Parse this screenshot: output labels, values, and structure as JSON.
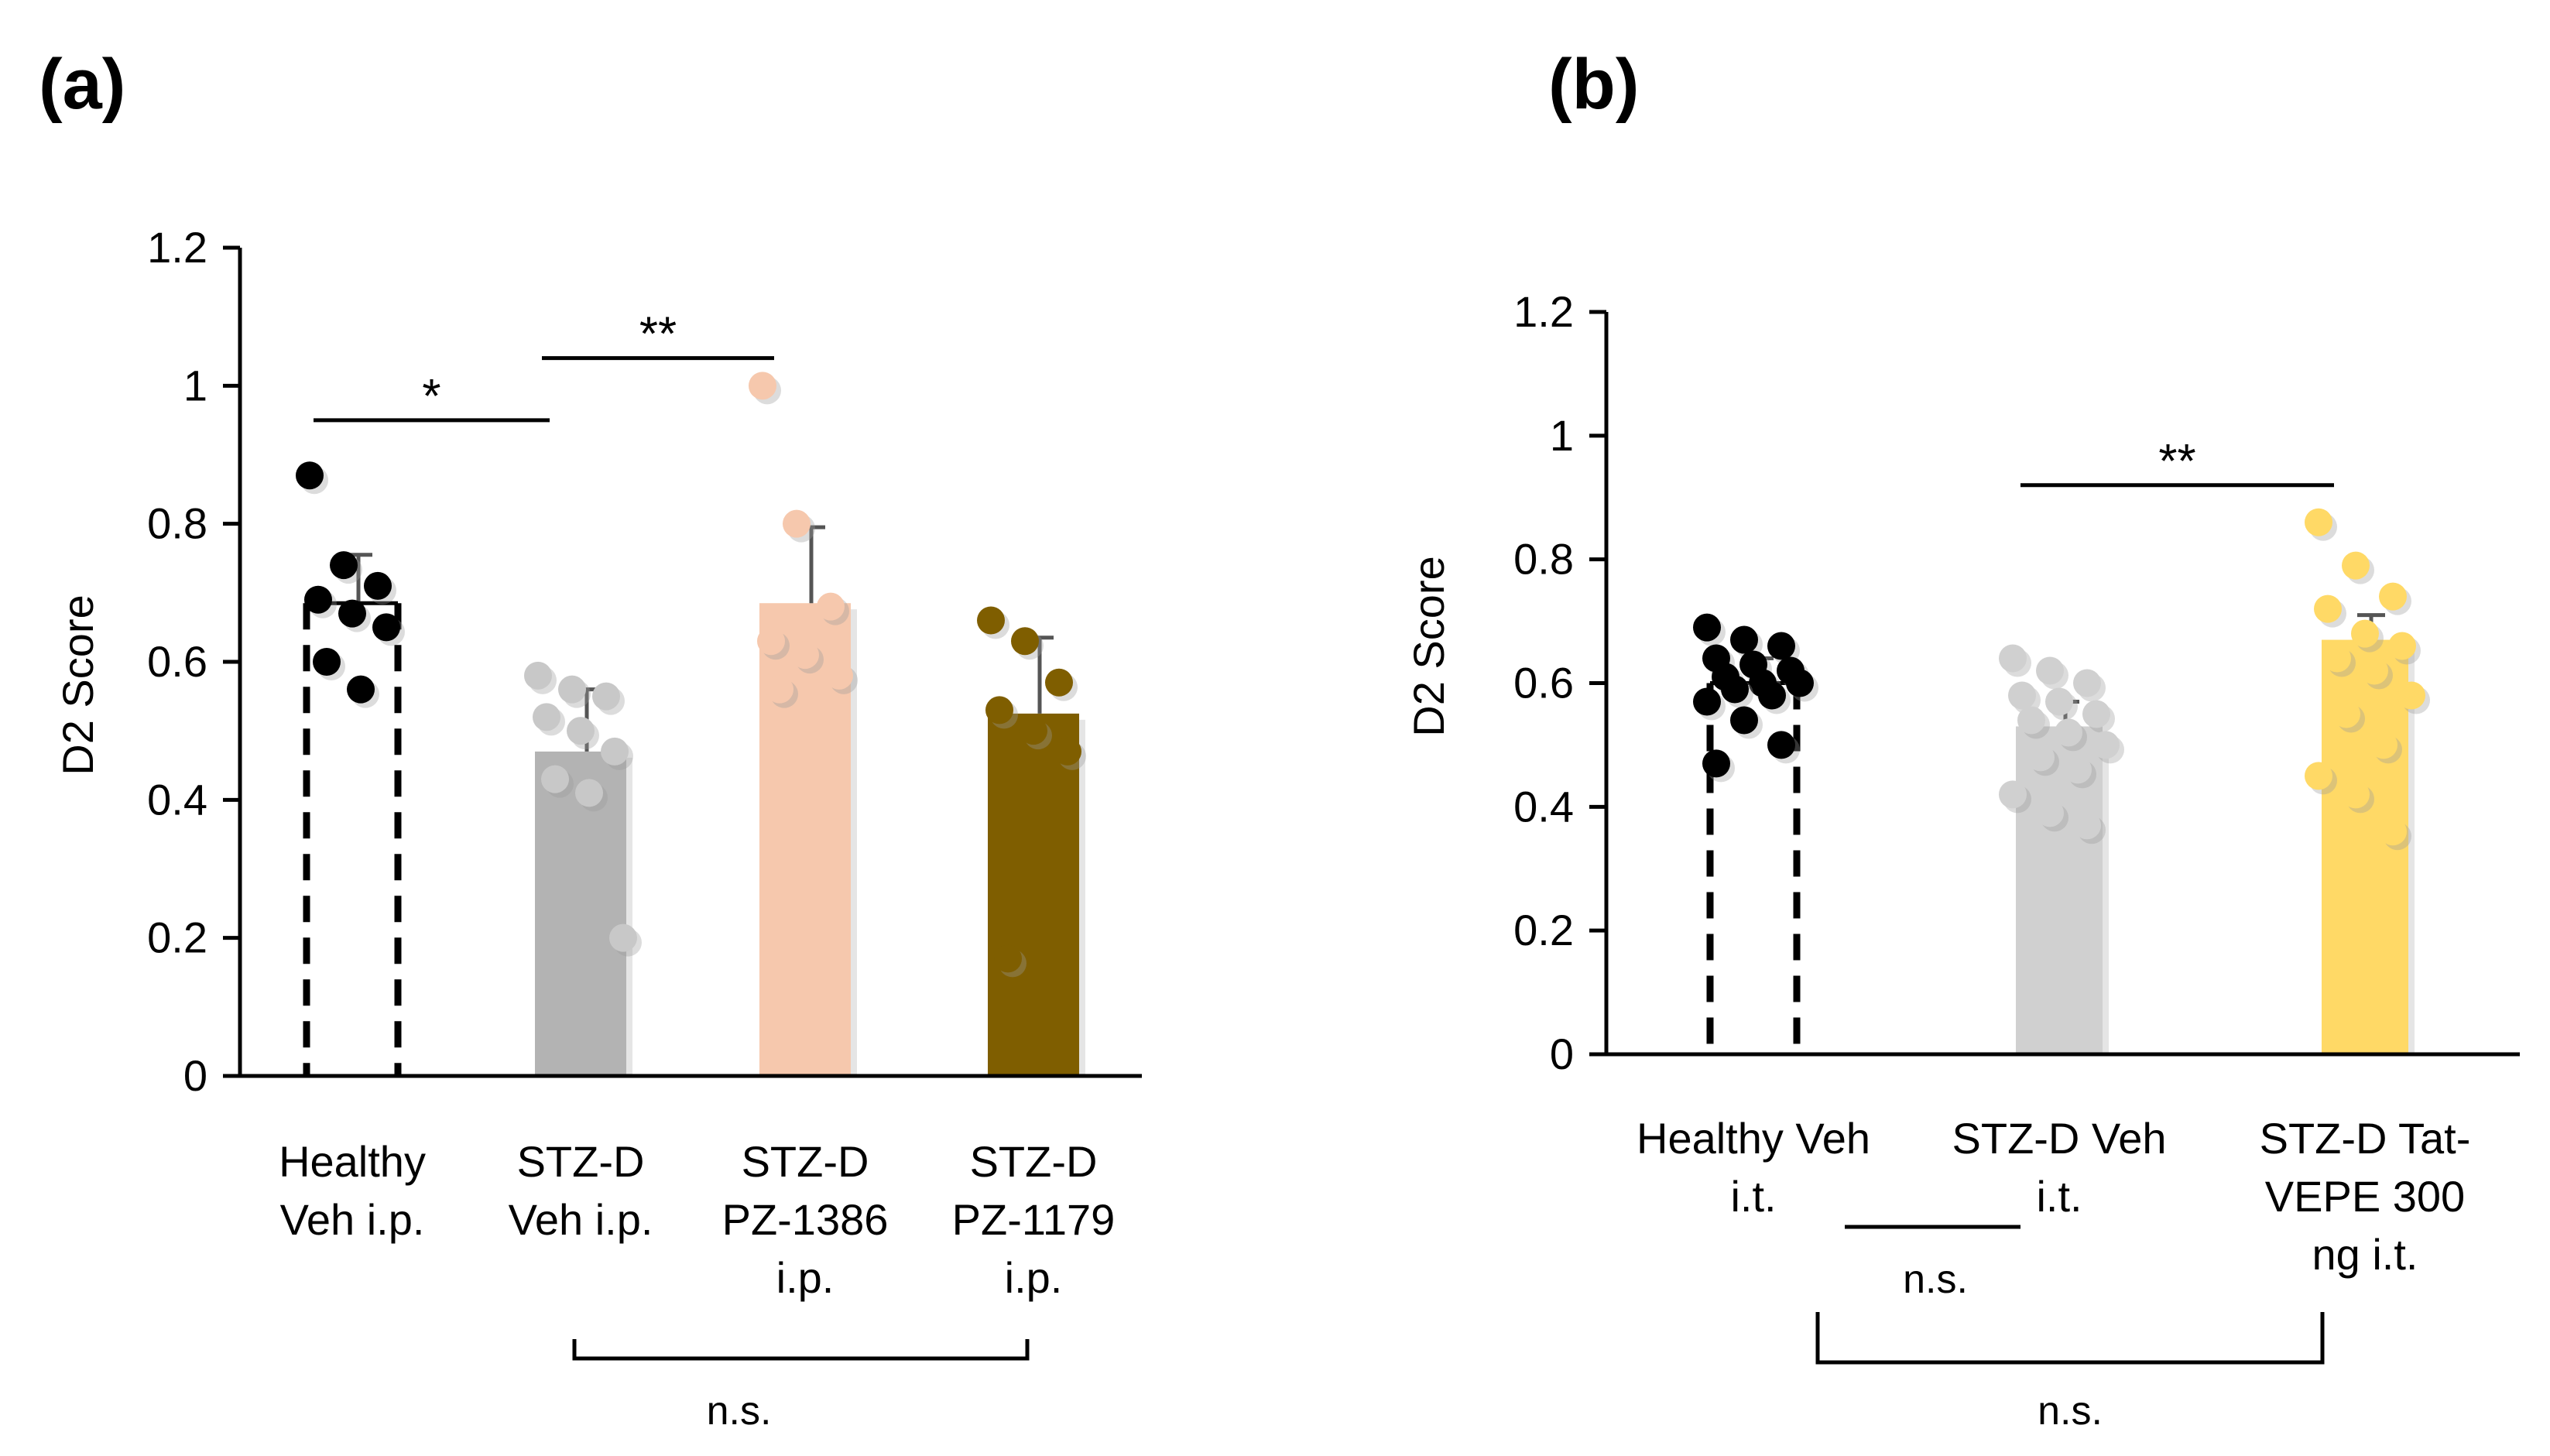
{
  "figure": {
    "panels": [
      {
        "label": "(a)"
      },
      {
        "label": "(b)"
      }
    ]
  },
  "chart_data": [
    {
      "type": "bar",
      "panel": "(a)",
      "ylabel": "D2 Score",
      "xlabel": "",
      "ylim": [
        0,
        1.2
      ],
      "yticks": [
        "0",
        "0.2",
        "0.4",
        "0.6",
        "0.8",
        "1",
        "1.2"
      ],
      "categories": [
        [
          "Healthy",
          "Veh i.p."
        ],
        [
          "STZ-D",
          "Veh i.p."
        ],
        [
          "STZ-D",
          "PZ-1386",
          "i.p."
        ],
        [
          "STZ-D",
          "PZ-1179",
          "i.p."
        ]
      ],
      "values": [
        0.685,
        0.47,
        0.685,
        0.525
      ],
      "errors": [
        0.07,
        0.09,
        0.11,
        0.11
      ],
      "colors": [
        "#ffffff",
        "#b3b3b3",
        "#f6c8ad",
        "#7f5e00"
      ],
      "dot_colors": [
        "#000000",
        "#c8c8c8",
        "#f6c8ad",
        "#7f5e00"
      ],
      "dashed_outline": [
        true,
        false,
        false,
        false
      ],
      "points": [
        [
          0.87,
          0.74,
          0.71,
          0.69,
          0.67,
          0.65,
          0.6,
          0.56
        ],
        [
          0.58,
          0.56,
          0.55,
          0.52,
          0.5,
          0.47,
          0.43,
          0.41,
          0.2
        ],
        [
          1.0,
          0.8,
          0.68,
          0.63,
          0.61,
          0.58,
          0.56
        ],
        [
          0.66,
          0.63,
          0.57,
          0.53,
          0.5,
          0.47,
          0.17
        ]
      ],
      "significance": [
        {
          "from": 0,
          "to": 1,
          "label": "*",
          "y": 0.95
        },
        {
          "from": 1,
          "to": 2,
          "label": "**",
          "y": 1.04
        }
      ],
      "bracket": {
        "from": 1,
        "to": 3,
        "label": "n.s."
      }
    },
    {
      "type": "bar",
      "panel": "(b)",
      "ylabel": "D2 Score",
      "xlabel": "",
      "ylim": [
        0,
        1.2
      ],
      "yticks": [
        "0",
        "0.2",
        "0.4",
        "0.6",
        "0.8",
        "1",
        "1.2"
      ],
      "categories": [
        [
          "Healthy Veh",
          "i.t."
        ],
        [
          "STZ-D Veh",
          "i.t."
        ],
        [
          "STZ-D Tat-",
          "VEPE 300",
          "ng i.t."
        ]
      ],
      "values": [
        0.6,
        0.53,
        0.67
      ],
      "errors": [
        0.04,
        0.04,
        0.04
      ],
      "colors": [
        "#ffffff",
        "#d0d0d0",
        "#ffd966"
      ],
      "dot_colors": [
        "#000000",
        "#d0d0d0",
        "#ffd966"
      ],
      "dashed_outline": [
        true,
        false,
        false
      ],
      "points": [
        [
          0.69,
          0.67,
          0.66,
          0.64,
          0.63,
          0.62,
          0.61,
          0.6,
          0.6,
          0.59,
          0.58,
          0.57,
          0.54,
          0.5,
          0.47
        ],
        [
          0.64,
          0.62,
          0.6,
          0.58,
          0.57,
          0.55,
          0.54,
          0.52,
          0.5,
          0.48,
          0.46,
          0.42,
          0.39,
          0.37
        ],
        [
          0.86,
          0.79,
          0.74,
          0.72,
          0.68,
          0.66,
          0.64,
          0.62,
          0.58,
          0.55,
          0.5,
          0.45,
          0.42,
          0.36
        ]
      ],
      "significance": [
        {
          "from": 1,
          "to": 2,
          "label": "**",
          "y": 0.92
        }
      ],
      "bracket_small": {
        "label": "n.s."
      },
      "bracket": {
        "from": 0,
        "to": 2,
        "label": "n.s."
      }
    }
  ]
}
